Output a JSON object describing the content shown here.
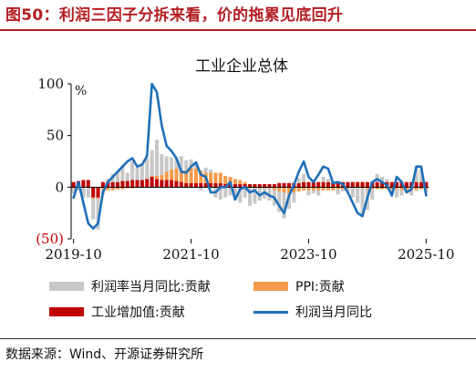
{
  "header": {
    "title": "图50：利润三因子分拆来看，价的拖累见底回升"
  },
  "footer": {
    "source": "数据来源：Wind、开源证券研究所"
  },
  "colors": {
    "accent": "#b31e22",
    "profit_margin": "#c8c8c8",
    "ppi": "#f39b4c",
    "industrial_va": "#c00000",
    "profit_yoy": "#1f6fb8"
  },
  "chart_data": {
    "type": "bar",
    "title": "工业企业总体",
    "unit_label": "%",
    "ylim": [
      -50,
      100
    ],
    "y_ticks": [
      "100",
      "50",
      "0",
      "(50)"
    ],
    "x_ticks": [
      "2019-10",
      "2021-10",
      "2023-10",
      "2025-10"
    ],
    "x": [
      "2019-10",
      "2019-11",
      "2019-12",
      "2020-01",
      "2020-02",
      "2020-03",
      "2020-04",
      "2020-05",
      "2020-06",
      "2020-07",
      "2020-08",
      "2020-09",
      "2020-10",
      "2020-11",
      "2020-12",
      "2021-01",
      "2021-02",
      "2021-03",
      "2021-04",
      "2021-05",
      "2021-06",
      "2021-07",
      "2021-08",
      "2021-09",
      "2021-10",
      "2021-11",
      "2021-12",
      "2022-01",
      "2022-02",
      "2022-03",
      "2022-04",
      "2022-05",
      "2022-06",
      "2022-07",
      "2022-08",
      "2022-09",
      "2022-10",
      "2022-11",
      "2022-12",
      "2023-01",
      "2023-02",
      "2023-03",
      "2023-04",
      "2023-05",
      "2023-06",
      "2023-07",
      "2023-08",
      "2023-09",
      "2023-10",
      "2023-11",
      "2023-12",
      "2024-01",
      "2024-02",
      "2024-03",
      "2024-04",
      "2024-05",
      "2024-06",
      "2024-07",
      "2024-08",
      "2024-09",
      "2024-10",
      "2024-11",
      "2024-12",
      "2025-01",
      "2025-02",
      "2025-03",
      "2025-04",
      "2025-05",
      "2025-06",
      "2025-07",
      "2025-08",
      "2025-09",
      "2025-10"
    ],
    "series": [
      {
        "name": "利润率当月同比:贡献",
        "kind": "bar",
        "values": [
          -5,
          -2,
          -10,
          -10,
          -20,
          -30,
          -5,
          3,
          8,
          10,
          15,
          8,
          18,
          12,
          15,
          20,
          25,
          35,
          20,
          15,
          12,
          10,
          15,
          10,
          8,
          5,
          -3,
          5,
          3,
          -10,
          -12,
          -10,
          -8,
          -12,
          -15,
          -10,
          -18,
          -15,
          -12,
          -10,
          -12,
          -15,
          -20,
          -25,
          -15,
          -10,
          5,
          8,
          -5,
          -3,
          -5,
          5,
          3,
          0,
          -5,
          -2,
          -3,
          -10,
          -15,
          -25,
          -20,
          -10,
          8,
          5,
          3,
          -3,
          -8,
          -5,
          0,
          -5,
          15,
          12,
          -3
        ]
      },
      {
        "name": "PPI:贡献",
        "kind": "bar",
        "values": [
          -1,
          -1,
          0,
          0,
          -1,
          -1,
          -2,
          -3,
          -3,
          -2,
          -2,
          -1,
          -1,
          0,
          0,
          0,
          1,
          3,
          5,
          8,
          10,
          12,
          10,
          12,
          15,
          14,
          12,
          10,
          10,
          10,
          10,
          8,
          7,
          5,
          4,
          2,
          0,
          -1,
          -1,
          -1,
          -1,
          -3,
          -4,
          -5,
          -6,
          -5,
          -4,
          -3,
          -3,
          -3,
          -3,
          -3,
          -3,
          -3,
          -2,
          -2,
          -1,
          0,
          0,
          -1,
          -2,
          -2,
          -2,
          -2,
          -2,
          -2,
          -2,
          -3,
          -3,
          -3,
          -3,
          -2,
          -2
        ]
      },
      {
        "name": "工业增加值:贡献",
        "kind": "bar",
        "values": [
          5,
          6,
          7,
          7,
          -10,
          -10,
          5,
          5,
          5,
          5,
          6,
          6,
          7,
          7,
          7,
          8,
          10,
          8,
          7,
          7,
          7,
          6,
          5,
          4,
          4,
          4,
          4,
          4,
          4,
          4,
          4,
          3,
          3,
          3,
          3,
          3,
          3,
          3,
          3,
          3,
          3,
          3,
          4,
          4,
          4,
          4,
          4,
          5,
          5,
          5,
          5,
          5,
          5,
          5,
          5,
          5,
          5,
          5,
          5,
          5,
          5,
          5,
          5,
          5,
          5,
          5,
          5,
          5,
          5,
          5,
          5,
          5,
          5
        ]
      },
      {
        "name": "利润当月同比",
        "kind": "line",
        "values": [
          -10,
          5,
          -15,
          -35,
          -40,
          -35,
          -5,
          5,
          10,
          15,
          20,
          25,
          28,
          20,
          22,
          30,
          100,
          92,
          60,
          40,
          35,
          28,
          15,
          14,
          20,
          24,
          12,
          10,
          -5,
          -5,
          0,
          0,
          5,
          -12,
          -2,
          0,
          -5,
          -3,
          -8,
          -5,
          -8,
          -10,
          -18,
          -25,
          -8,
          2,
          15,
          25,
          10,
          5,
          12,
          20,
          18,
          4,
          5,
          3,
          -5,
          -15,
          -25,
          -28,
          -10,
          5,
          8,
          5,
          2,
          -8,
          10,
          5,
          -5,
          -2,
          20,
          20,
          -8
        ]
      }
    ]
  }
}
